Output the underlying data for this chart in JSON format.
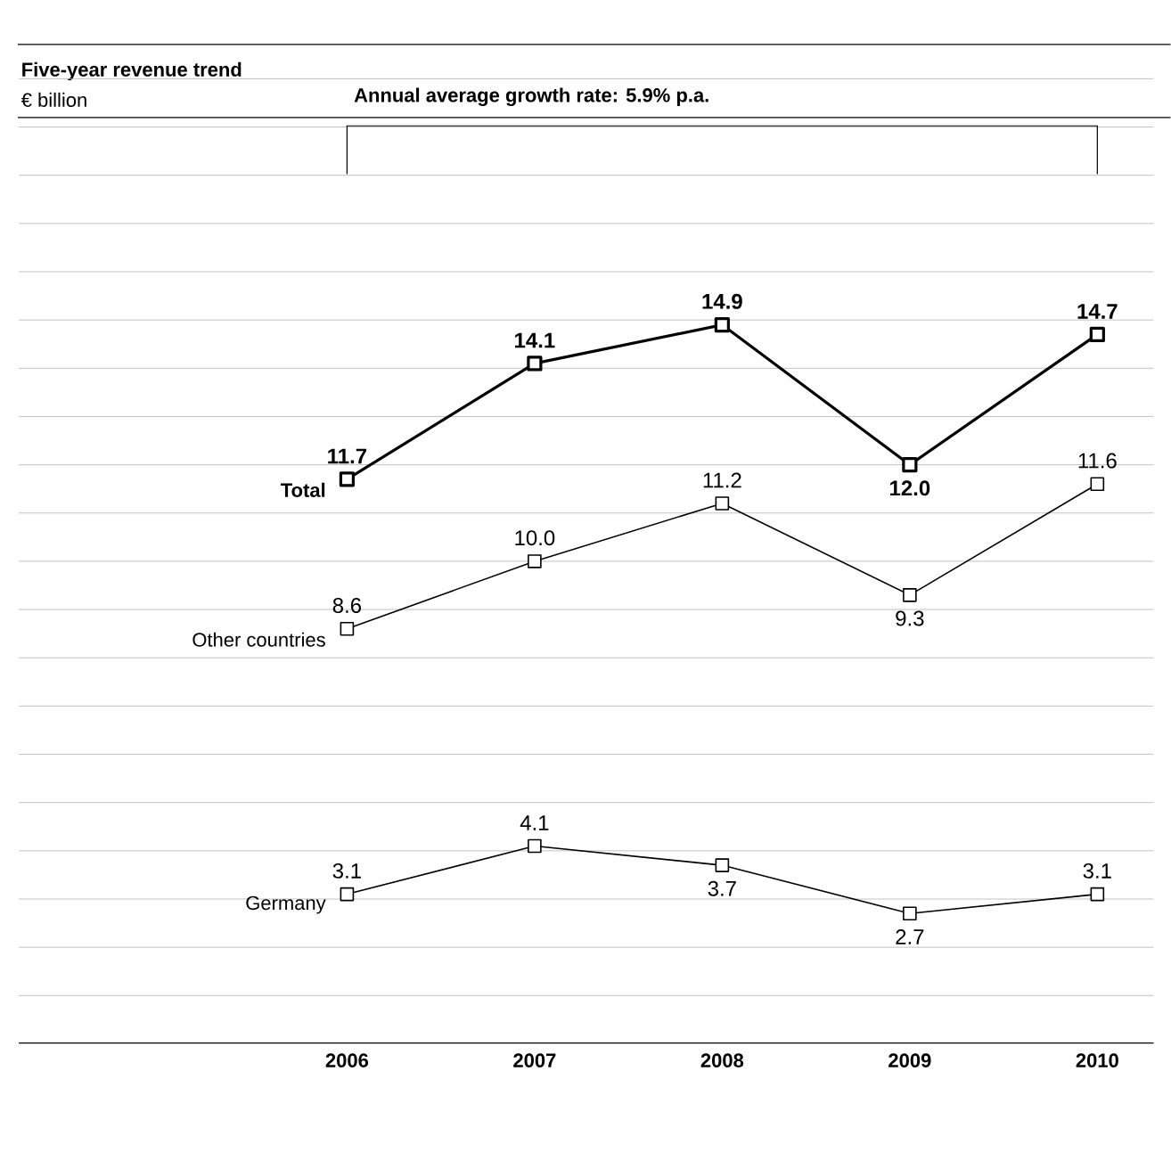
{
  "chart_data": {
    "type": "line",
    "title": "Five-year revenue trend",
    "subtitle": "€ billion",
    "categories": [
      "2006",
      "2007",
      "2008",
      "2009",
      "2010"
    ],
    "series": [
      {
        "name": "Total",
        "color": "#000000",
        "values": [
          11.7,
          14.1,
          14.9,
          12.0,
          14.7
        ],
        "value_labels": [
          "11.7",
          "14.1",
          "14.9",
          "12.0",
          "14.7"
        ]
      },
      {
        "name": "Other countries",
        "color": "#000000",
        "values": [
          8.6,
          10.0,
          11.2,
          9.3,
          11.6
        ],
        "value_labels": [
          "8.6",
          "10.0",
          "11.2",
          "9.3",
          "11.6"
        ]
      },
      {
        "name": "Germany",
        "color": "#000000",
        "values": [
          3.1,
          4.1,
          3.7,
          2.7,
          3.1
        ],
        "value_labels": [
          "3.1",
          "4.1",
          "3.7",
          "2.7",
          "3.1"
        ]
      }
    ],
    "annotations": [
      "Annual average growth rate: 5.9% p.a."
    ],
    "tick_labels": "x",
    "grid": "y",
    "marker": "square",
    "line_style": "solid"
  }
}
